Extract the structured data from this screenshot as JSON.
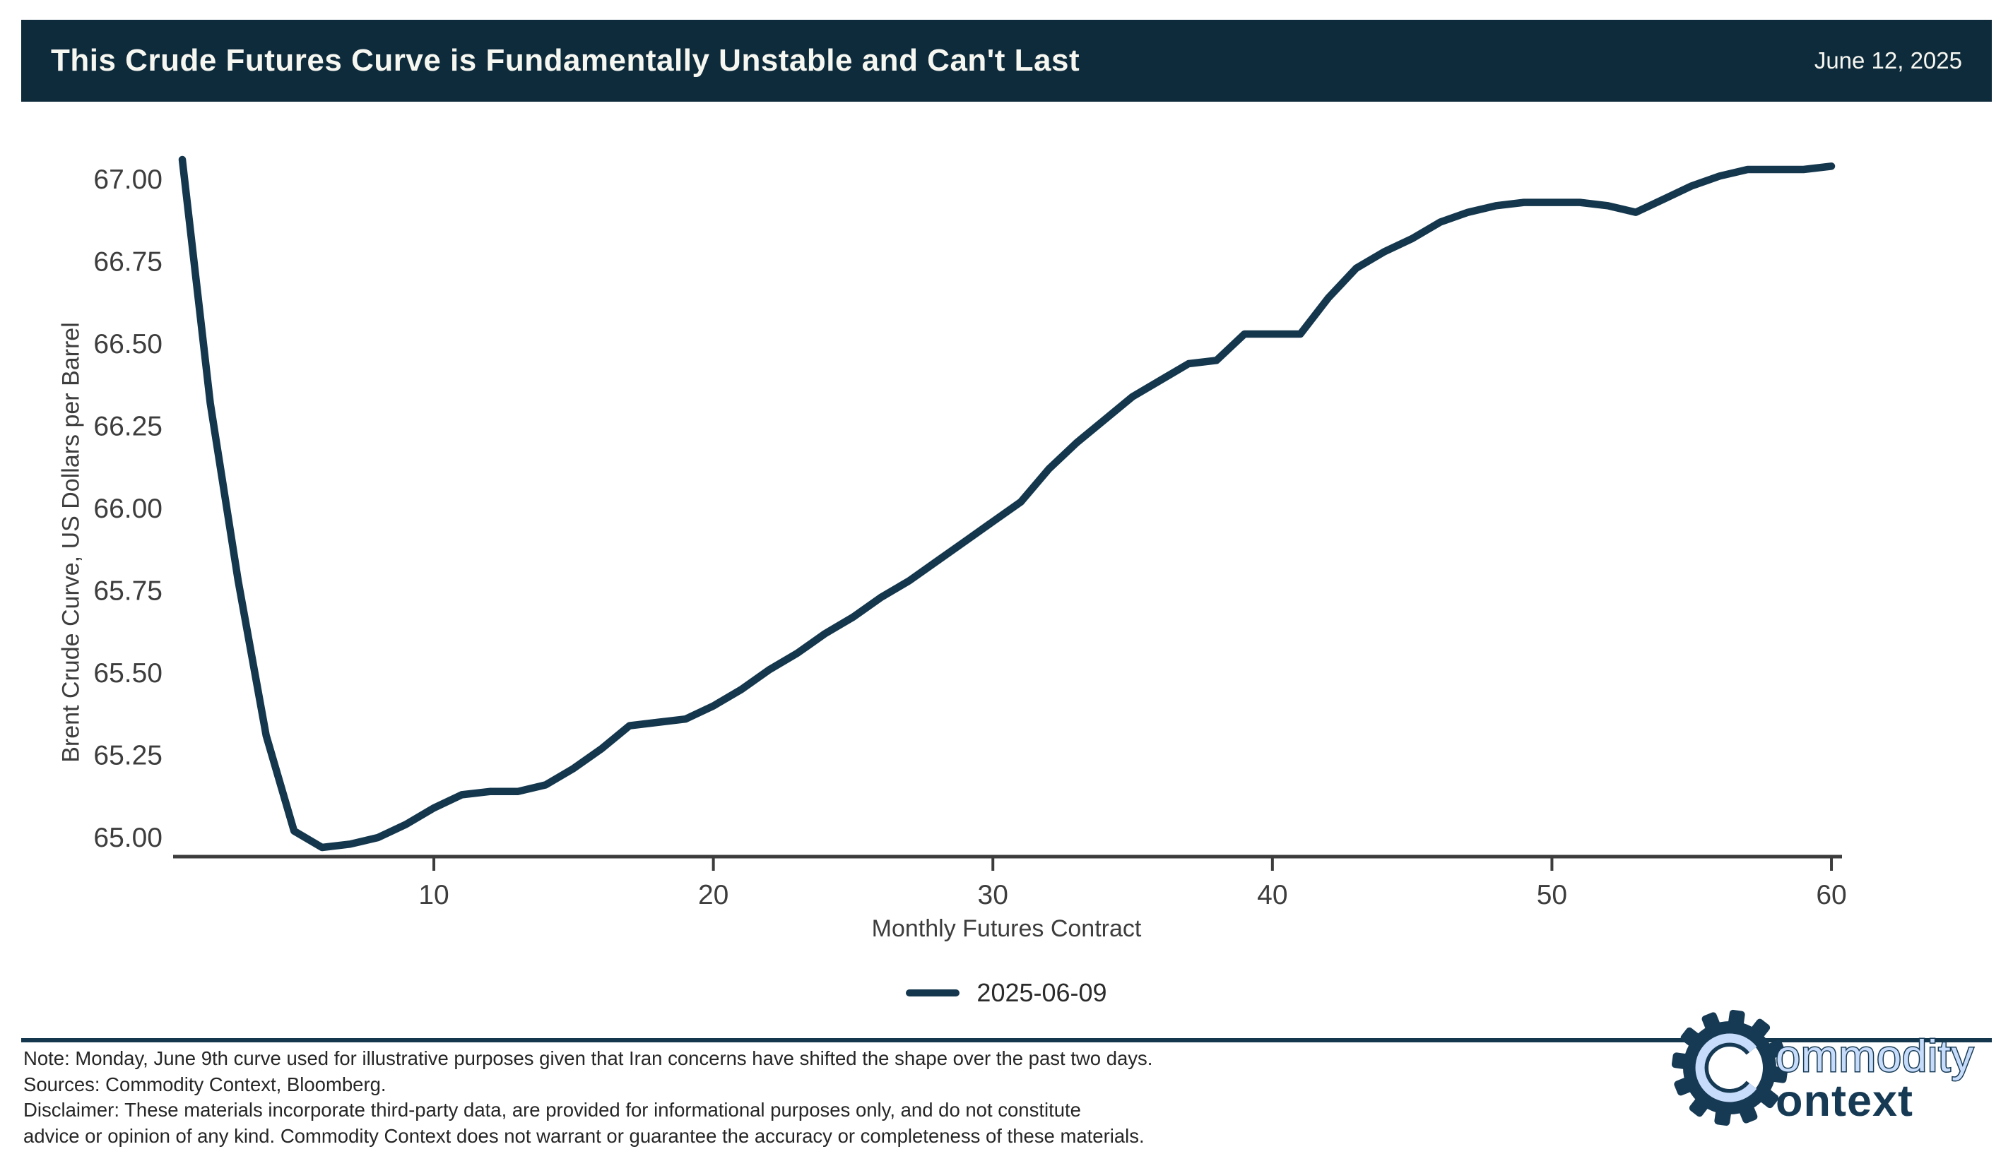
{
  "header": {
    "title": "This Crude Futures Curve is Fundamentally Unstable and Can't Last",
    "date": "June 12, 2025"
  },
  "chart_data": {
    "type": "line",
    "title": "",
    "xlabel": "Monthly Futures Contract",
    "ylabel": "Brent Crude Curve, US Dollars per Barrel",
    "x": [
      1,
      2,
      3,
      4,
      5,
      6,
      7,
      8,
      9,
      10,
      11,
      12,
      13,
      14,
      15,
      16,
      17,
      18,
      19,
      20,
      21,
      22,
      23,
      24,
      25,
      26,
      27,
      28,
      29,
      30,
      31,
      32,
      33,
      34,
      35,
      36,
      37,
      38,
      39,
      40,
      41,
      42,
      43,
      44,
      45,
      46,
      47,
      48,
      49,
      50,
      51,
      52,
      53,
      54,
      55,
      56,
      57,
      58,
      59,
      60
    ],
    "series": [
      {
        "name": "2025-06-09",
        "color": "#14374d",
        "values": [
          67.06,
          66.32,
          65.78,
          65.31,
          65.02,
          64.97,
          64.98,
          65.0,
          65.04,
          65.09,
          65.13,
          65.14,
          65.14,
          65.16,
          65.21,
          65.27,
          65.34,
          65.35,
          65.36,
          65.4,
          65.45,
          65.51,
          65.56,
          65.62,
          65.67,
          65.73,
          65.78,
          65.84,
          65.9,
          65.96,
          66.02,
          66.12,
          66.2,
          66.27,
          66.34,
          66.39,
          66.44,
          66.45,
          66.53,
          66.53,
          66.53,
          66.64,
          66.73,
          66.78,
          66.82,
          66.87,
          66.9,
          66.92,
          66.93,
          66.93,
          66.93,
          66.92,
          66.9,
          66.94,
          66.98,
          67.01,
          67.03,
          67.03,
          67.03,
          67.04
        ]
      }
    ],
    "y_ticks": [
      65.0,
      65.25,
      65.5,
      65.75,
      66.0,
      66.25,
      66.5,
      66.75,
      67.0
    ],
    "x_ticks": [
      10,
      20,
      30,
      40,
      50,
      60
    ],
    "ylim": [
      64.95,
      67.1
    ],
    "xlim": [
      1,
      60
    ],
    "grid": "off",
    "legend_position": "bottom-center"
  },
  "legend": {
    "label": "2025-06-09"
  },
  "footer": {
    "lines": [
      "Note: Monday, June 9th curve used for illustrative purposes given that Iran concerns have shifted the shape over the past two days.",
      "Sources: Commodity Context, Bloomberg.",
      "Disclaimer: These materials incorporate third-party data, are provided for informational purposes only, and do not constitute",
      "advice or opinion of any kind. Commodity Context does not warrant or guarantee the accuracy or completeness of these materials."
    ]
  },
  "logo": {
    "word1": "ommodity",
    "word2": "ontext",
    "gear_icon": "gear-with-letter-C"
  },
  "colors": {
    "navy": "#14374d",
    "header_bg": "#0e2b3b",
    "axis": "#3c3c3c",
    "tick_text": "#3d3d3d",
    "footer_text": "#262626",
    "logo_navy": "#173a54",
    "logo_light": "#c6dcfa"
  }
}
